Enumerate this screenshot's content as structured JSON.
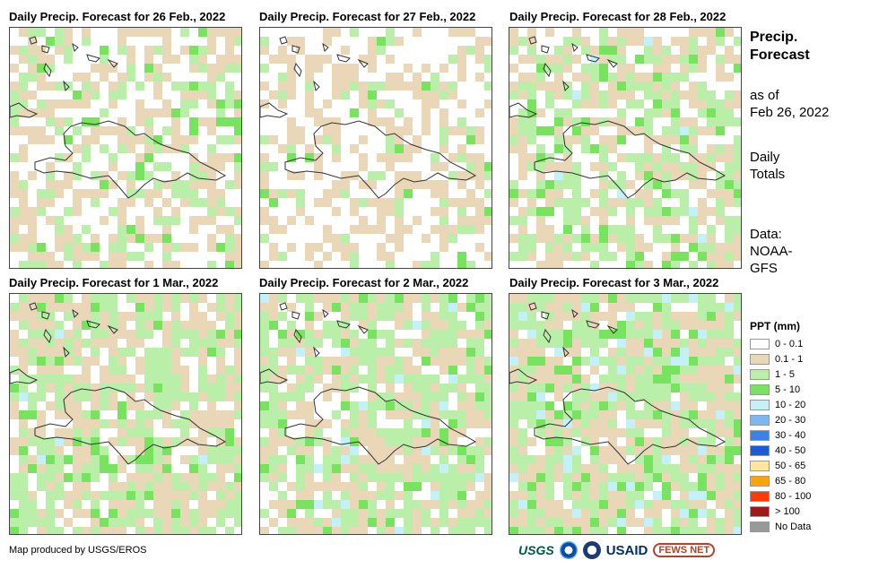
{
  "panels": [
    {
      "title": "Daily Precip. Forecast for 26 Feb., 2022",
      "seed": 11,
      "wet": 0.25,
      "heavy": 0.0
    },
    {
      "title": "Daily Precip. Forecast for 27 Feb., 2022",
      "seed": 23,
      "wet": 0.12,
      "heavy": 0.0
    },
    {
      "title": "Daily Precip. Forecast for 28 Feb., 2022",
      "seed": 37,
      "wet": 0.35,
      "heavy": 0.02
    },
    {
      "title": "Daily Precip. Forecast for 1 Mar., 2022",
      "seed": 41,
      "wet": 0.45,
      "heavy": 0.01
    },
    {
      "title": "Daily Precip. Forecast for 2 Mar., 2022",
      "seed": 53,
      "wet": 0.45,
      "heavy": 0.02
    },
    {
      "title": "Daily Precip. Forecast for 3 Mar., 2022",
      "seed": 67,
      "wet": 0.5,
      "heavy": 0.05
    }
  ],
  "side": {
    "title_line1": "Precip.",
    "title_line2": "Forecast",
    "asof_line1": "as of",
    "asof_line2": "Feb 26, 2022",
    "daily_line1": "Daily",
    "daily_line2": "Totals",
    "data_line1": "Data:",
    "data_line2": "NOAA-",
    "data_line3": "GFS"
  },
  "legend": {
    "title": "PPT (mm)",
    "items": [
      {
        "label": "0 - 0.1",
        "color": "#ffffff"
      },
      {
        "label": "0.1 - 1",
        "color": "#ead7b8"
      },
      {
        "label": "1 - 5",
        "color": "#b9efa8"
      },
      {
        "label": "5 - 10",
        "color": "#78e35f"
      },
      {
        "label": "10 - 20",
        "color": "#c4f1f7"
      },
      {
        "label": "20 - 30",
        "color": "#7cb8f0"
      },
      {
        "label": "30 - 40",
        "color": "#3b82e8"
      },
      {
        "label": "40 - 50",
        "color": "#1c5bd6"
      },
      {
        "label": "50 - 65",
        "color": "#ffe69a"
      },
      {
        "label": "65 - 80",
        "color": "#ffa500"
      },
      {
        "label": "80 - 100",
        "color": "#ff3b00"
      },
      {
        "label": "> 100",
        "color": "#a01818"
      },
      {
        "label": "No Data",
        "color": "#999999"
      }
    ]
  },
  "credit": "Map produced by USGS/EROS",
  "logos": {
    "usgs": "USGS",
    "usaid": "USAID",
    "fews": "FEWS NET"
  }
}
